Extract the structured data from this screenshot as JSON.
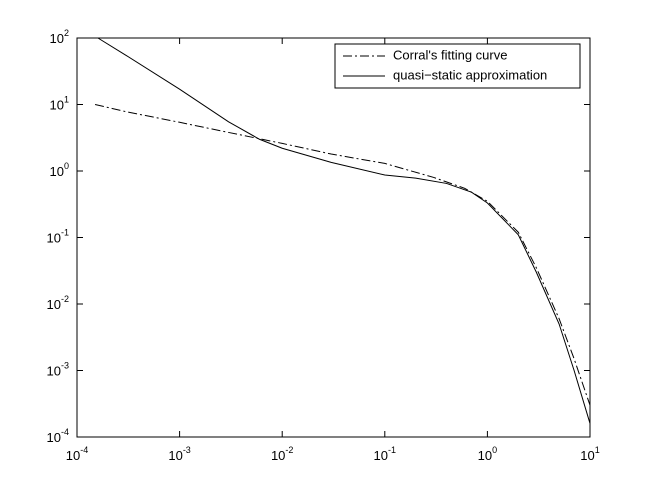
{
  "chart_data": {
    "type": "line",
    "xscale": "log",
    "yscale": "log",
    "xlim": [
      0.0001,
      10
    ],
    "ylim": [
      0.0001,
      100
    ],
    "xticks": [
      {
        "value": 0.0001,
        "label": "10^-4"
      },
      {
        "value": 0.001,
        "label": "10^-3"
      },
      {
        "value": 0.01,
        "label": "10^-2"
      },
      {
        "value": 0.1,
        "label": "10^-1"
      },
      {
        "value": 1,
        "label": "10^0"
      },
      {
        "value": 10,
        "label": "10^1"
      }
    ],
    "yticks": [
      {
        "value": 0.0001,
        "label": "10^-4"
      },
      {
        "value": 0.001,
        "label": "10^-3"
      },
      {
        "value": 0.01,
        "label": "10^-2"
      },
      {
        "value": 0.1,
        "label": "10^-1"
      },
      {
        "value": 1,
        "label": "10^0"
      },
      {
        "value": 10,
        "label": "10^1"
      },
      {
        "value": 100,
        "label": "10^2"
      }
    ],
    "grid": false,
    "legend": "upper right",
    "series": [
      {
        "name": "Corral's fitting curve",
        "color": "#000000",
        "dash": "dashdot",
        "x": [
          0.00015,
          0.0003,
          0.001,
          0.003,
          0.01,
          0.03,
          0.1,
          0.3,
          0.6,
          1,
          2,
          3,
          5,
          7,
          10
        ],
        "values": [
          10,
          7.8,
          5.4,
          3.8,
          2.6,
          1.8,
          1.3,
          0.8,
          0.55,
          0.35,
          0.12,
          0.035,
          0.006,
          0.0015,
          0.0003
        ]
      },
      {
        "name": "quasi−static approximation",
        "color": "#000000",
        "dash": "solid",
        "x": [
          0.00016,
          0.0003,
          0.001,
          0.003,
          0.006,
          0.01,
          0.03,
          0.1,
          0.2,
          0.4,
          0.7,
          1,
          2,
          3,
          5,
          7,
          10
        ],
        "values": [
          100,
          55,
          17,
          5.5,
          3.0,
          2.2,
          1.35,
          0.87,
          0.78,
          0.65,
          0.48,
          0.33,
          0.11,
          0.03,
          0.005,
          0.001,
          0.00016
        ]
      }
    ]
  }
}
